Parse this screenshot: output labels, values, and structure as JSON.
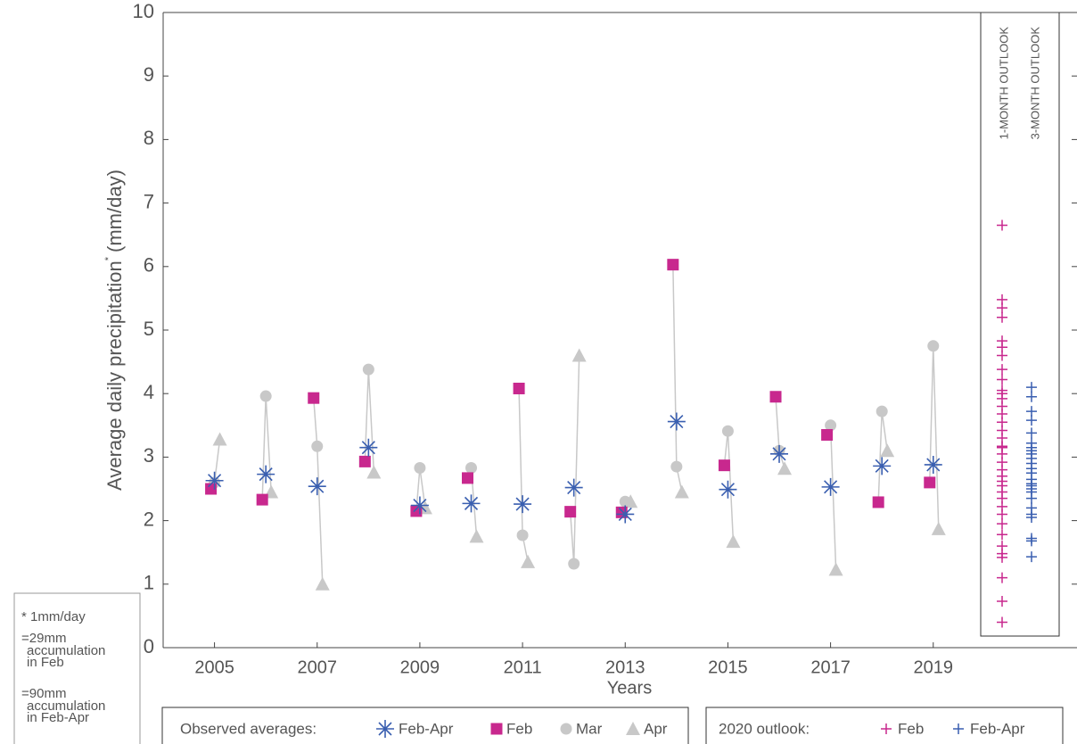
{
  "chart_data": {
    "type": "scatter",
    "y_label": "Average daily precipitation",
    "y_label_mark": "*",
    "y_label_unit": "(mm/day)",
    "x_label": "Years",
    "x": [
      2005,
      2006,
      2007,
      2008,
      2009,
      2010,
      2011,
      2012,
      2013,
      2014,
      2015,
      2016,
      2017,
      2018,
      2019
    ],
    "series": [
      {
        "name": "Feb-Apr",
        "color": "#3a5fb0",
        "marker": "asterisk",
        "values": [
          2.63,
          2.73,
          2.54,
          3.15,
          2.24,
          2.27,
          2.26,
          2.52,
          2.1,
          3.56,
          2.49,
          3.05,
          2.53,
          2.86,
          2.88
        ]
      },
      {
        "name": "Feb",
        "color": "#c8288e",
        "marker": "square",
        "values": [
          2.5,
          2.33,
          3.93,
          2.93,
          2.15,
          2.67,
          4.08,
          2.14,
          2.13,
          6.03,
          2.87,
          3.95,
          3.35,
          2.29,
          2.6
        ]
      },
      {
        "name": "Mar",
        "color": "#c8c8c8",
        "marker": "circle",
        "values": [
          2.6,
          3.96,
          3.17,
          4.38,
          2.83,
          2.83,
          1.77,
          1.32,
          2.3,
          2.85,
          3.41,
          3.1,
          3.5,
          3.72,
          4.75
        ]
      },
      {
        "name": "Apr",
        "color": "#c8c8c8",
        "marker": "triangle",
        "values": [
          3.28,
          2.45,
          1.0,
          2.76,
          2.2,
          1.75,
          1.35,
          4.6,
          2.3,
          2.45,
          1.67,
          2.82,
          1.23,
          3.1,
          1.87
        ]
      }
    ],
    "legend_title": "Observed averages:",
    "xlim": [
      2004,
      2021.8
    ],
    "xticks": [
      2005,
      2007,
      2009,
      2011,
      2013,
      2015,
      2017,
      2019
    ],
    "ylim": [
      0,
      10
    ],
    "yticks": [
      0,
      1,
      2,
      3,
      4,
      5,
      6,
      7,
      8,
      9,
      10
    ],
    "outlook": {
      "title": "2020 outlook:",
      "series": [
        {
          "name": "Feb",
          "label": "1-MONTH OUTLOOK",
          "color": "#c8288e",
          "values": [
            6.65,
            5.48,
            5.35,
            5.2,
            4.83,
            4.73,
            4.6,
            4.38,
            4.22,
            4.05,
            4.0,
            3.92,
            3.8,
            3.68,
            3.55,
            3.42,
            3.3,
            3.17,
            3.15,
            3.05,
            2.92,
            2.8,
            2.7,
            2.62,
            2.55,
            2.45,
            2.35,
            2.22,
            2.1,
            1.95,
            1.78,
            1.6,
            1.48,
            1.42,
            1.1,
            0.73,
            0.4
          ]
        },
        {
          "name": "Feb-Apr",
          "label": "3-MONTH OUTLOOK",
          "color": "#3a5fb0",
          "values": [
            4.1,
            3.95,
            3.72,
            3.58,
            3.38,
            3.22,
            3.15,
            3.1,
            3.05,
            2.98,
            2.9,
            2.82,
            2.75,
            2.65,
            2.58,
            2.55,
            2.5,
            2.45,
            2.35,
            2.2,
            2.1,
            2.05,
            1.72,
            1.68,
            1.43
          ]
        }
      ]
    },
    "footnote": [
      "* 1mm/day",
      "=29mm",
      "accumulation",
      "in Feb",
      "=90mm",
      "accumulation",
      "in Feb-Apr"
    ]
  }
}
